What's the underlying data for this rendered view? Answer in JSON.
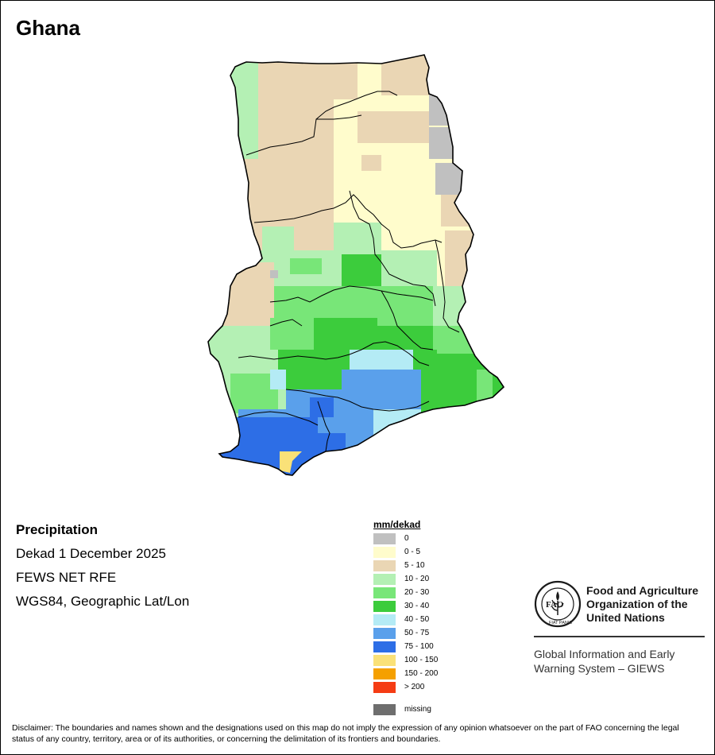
{
  "title": "Ghana",
  "info": {
    "variable": "Precipitation",
    "period": "Dekad 1 December 2025",
    "source": "FEWS NET RFE",
    "projection": "WGS84, Geographic Lat/Lon"
  },
  "legend": {
    "title": "mm/dekad",
    "classes": [
      {
        "label": "0",
        "color": "#c0c0c0"
      },
      {
        "label": "0 - 5",
        "color": "#fffccc"
      },
      {
        "label": "5 - 10",
        "color": "#ead6b4"
      },
      {
        "label": "10 - 20",
        "color": "#b4f0b4"
      },
      {
        "label": "20 - 30",
        "color": "#78e678"
      },
      {
        "label": "30 - 40",
        "color": "#3ccc3c"
      },
      {
        "label": "40 - 50",
        "color": "#b4ebf5"
      },
      {
        "label": "50 - 75",
        "color": "#5aa0eb"
      },
      {
        "label": "75 - 100",
        "color": "#2d6ee6"
      },
      {
        "label": "100 - 150",
        "color": "#fae178"
      },
      {
        "label": "150 - 200",
        "color": "#f5a000"
      },
      {
        "label": "> 200",
        "color": "#f53c14"
      }
    ],
    "missing": {
      "label": "missing",
      "color": "#6e6e6e"
    }
  },
  "org": {
    "name_line1": "Food and Agriculture",
    "name_line2": "Organization of the",
    "name_line3": "United Nations",
    "system_line1": "Global Information and Early",
    "system_line2": "Warning System – GIEWS",
    "logo_letters": "FAO",
    "logo_motto": "FIAT PANIS"
  },
  "disclaimer": "Disclaimer: The boundaries and names shown and the designations used on this map do not imply the expression of any opinion whatsoever on the part of FAO concerning the legal status of any country, territory, area or of its authorities, or concerning the delimitation of its frontiers and boundaries."
}
